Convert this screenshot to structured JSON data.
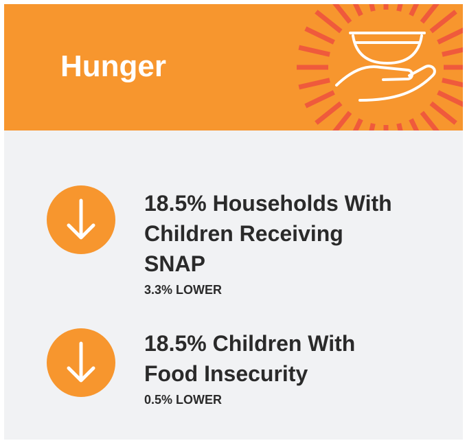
{
  "header": {
    "title": "Hunger"
  },
  "items": [
    {
      "title": "18.5% Households With Children Receiving SNAP",
      "change": "3.3% LOWER"
    },
    {
      "title": "18.5% Children With Food Insecurity",
      "change": "0.5% LOWER"
    }
  ]
}
